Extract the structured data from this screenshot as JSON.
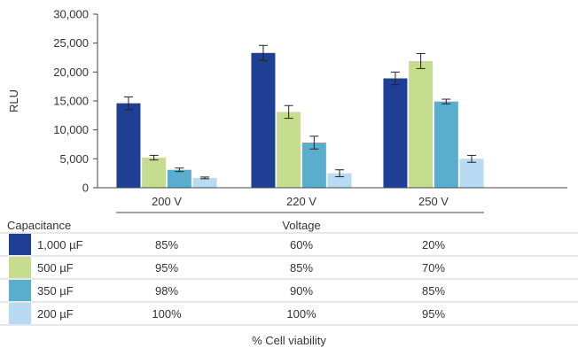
{
  "chart_data": {
    "type": "bar",
    "ylabel": "RLU",
    "ylim": [
      0,
      30000
    ],
    "yticks": [
      "0",
      "5,000",
      "10,000",
      "15,000",
      "20,000",
      "25,000",
      "30,000"
    ],
    "ytick_values": [
      0,
      5000,
      10000,
      15000,
      20000,
      25000,
      30000
    ],
    "xlabel": "Voltage",
    "categories": [
      "200 V",
      "220 V",
      "250 V"
    ],
    "series": [
      {
        "name": "1,000 µF",
        "color": "#1f3f94",
        "values": [
          14600,
          23300,
          18900
        ],
        "errors": [
          1100,
          1300,
          1100
        ]
      },
      {
        "name": "500 µF",
        "color": "#c6dc8f",
        "values": [
          5200,
          13100,
          21900
        ],
        "errors": [
          400,
          1100,
          1300
        ]
      },
      {
        "name": "350 µF",
        "color": "#5aaecd",
        "values": [
          3100,
          7800,
          14900
        ],
        "errors": [
          300,
          1100,
          400
        ]
      },
      {
        "name": "200 µF",
        "color": "#b8daf2",
        "values": [
          1700,
          2500,
          5000
        ],
        "errors": [
          150,
          600,
          600
        ]
      }
    ]
  },
  "table": {
    "header_label": "Capacitance",
    "header_voltage": "Voltage",
    "rows": [
      {
        "label": "1,000 µF",
        "values": [
          "85%",
          "60%",
          "20%"
        ]
      },
      {
        "label": "500 µF",
        "values": [
          "95%",
          "85%",
          "70%"
        ]
      },
      {
        "label": "350 µF",
        "values": [
          "98%",
          "90%",
          "85%"
        ]
      },
      {
        "label": "200 µF",
        "values": [
          "100%",
          "100%",
          "95%"
        ]
      }
    ],
    "footer": "% Cell viability"
  }
}
